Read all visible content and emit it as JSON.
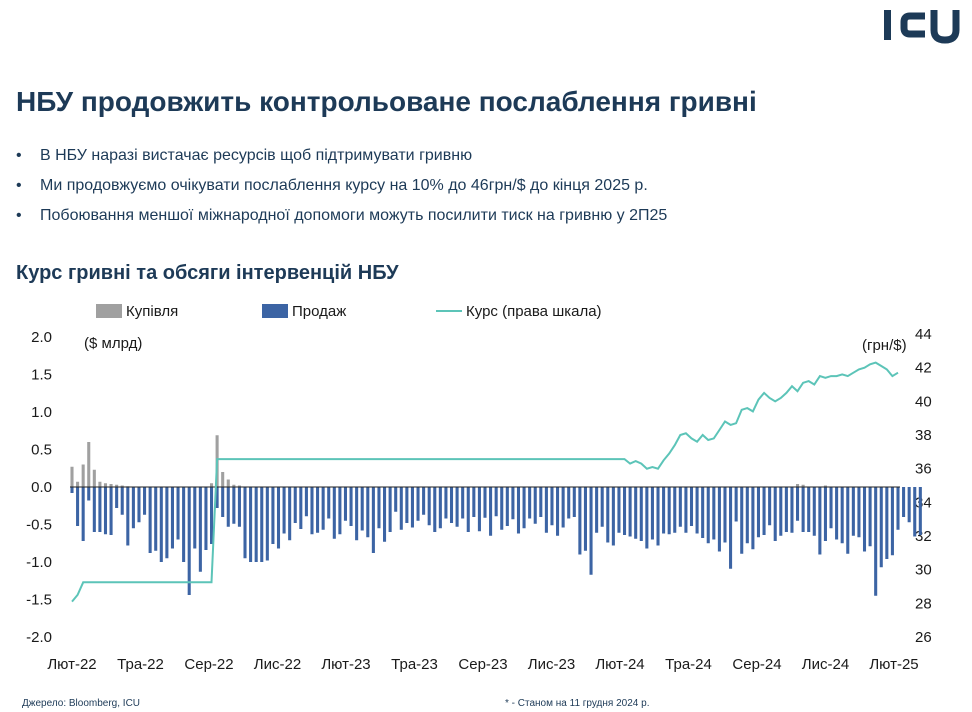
{
  "brand": {
    "logo_text": "ICU"
  },
  "slide": {
    "title": "НБУ продовжить контрольоване послаблення гривні",
    "bullets": [
      "В НБУ наразі вистачає ресурсів щоб підтримувати гривню",
      "Ми продовжуємо очікувати послаблення курсу на 10% до 46грн/$ до кінця 2025 р.",
      "Побоювання меншої міжнародної допомоги можуть посилити тиск на гривню у 2П25"
    ],
    "chart_title": "Курс гривні та обсяги інтервенцій НБУ"
  },
  "footer": {
    "source": "Джерело: Bloomberg, ICU",
    "note": "* - Станом на 11 грудня 2024 р."
  },
  "colors": {
    "buy": "#a0a0a0",
    "sell": "#3c64a4",
    "rate": "#5cc4b8",
    "text": "#1d3a57"
  },
  "chart_data": {
    "type": "bar+line",
    "legend": [
      {
        "label": "Купівля",
        "key": "buy"
      },
      {
        "label": "Продаж",
        "key": "sell"
      },
      {
        "label": "Курс (права шкала)",
        "key": "rate"
      }
    ],
    "left_unit": "($ млрд)",
    "right_unit": "(грн/$)",
    "left_ylim": [
      -2.0,
      2.0
    ],
    "left_ticks": [
      "2.0",
      "1.5",
      "1.0",
      "0.5",
      "0.0",
      "-0.5",
      "-1.0",
      "-1.5",
      "-2.0"
    ],
    "right_ylim": [
      26,
      44
    ],
    "right_ticks": [
      "44",
      "42",
      "40",
      "38",
      "36",
      "34",
      "32",
      "30",
      "28",
      "26"
    ],
    "x_ticks": [
      "Лют-22",
      "Тра-22",
      "Сер-22",
      "Лис-22",
      "Лют-23",
      "Тра-23",
      "Сер-23",
      "Лис-23",
      "Лют-24",
      "Тра-24",
      "Сер-24",
      "Лис-24",
      "Лют-25"
    ],
    "weeks": 149,
    "buy": [
      0.27,
      0.07,
      0.3,
      0.6,
      0.23,
      0.07,
      0.05,
      0.04,
      0.03,
      0.02,
      0.01,
      0,
      0,
      0,
      0,
      0,
      0,
      0,
      0,
      0,
      0,
      0,
      0,
      0,
      0,
      0.05,
      0.69,
      0.2,
      0.1,
      0.03,
      0.02,
      0,
      0,
      0,
      0,
      0,
      0,
      0,
      0,
      0,
      0,
      0,
      0,
      0,
      0,
      0,
      0,
      0,
      0,
      0,
      0,
      0,
      0,
      0,
      0,
      0,
      0,
      0,
      0,
      0,
      0,
      0,
      0,
      0,
      0,
      0,
      0,
      0,
      0,
      0,
      0,
      0,
      0,
      0,
      0,
      0,
      0,
      0,
      0,
      0,
      0,
      0,
      0,
      0,
      0,
      0,
      0,
      0,
      0,
      0,
      0,
      0,
      0,
      0,
      0,
      0,
      0,
      0,
      0,
      0,
      0,
      0,
      0,
      0,
      0,
      0,
      0,
      0,
      0,
      0,
      0,
      0,
      0,
      0,
      0,
      0,
      0,
      0,
      0,
      0,
      0,
      0,
      0,
      0,
      0,
      0,
      0,
      0,
      0,
      0,
      0.04,
      0.03,
      0,
      0,
      0,
      0.02,
      0,
      0,
      0,
      0,
      0,
      0,
      0,
      0,
      0,
      0,
      0,
      0,
      0,
      0,
      0,
      0,
      0
    ],
    "sell": [
      -0.08,
      -0.52,
      -0.72,
      -0.18,
      -0.6,
      -0.6,
      -0.63,
      -0.64,
      -0.28,
      -0.37,
      -0.78,
      -0.55,
      -0.47,
      -0.37,
      -0.88,
      -0.85,
      -1.0,
      -0.95,
      -0.82,
      -0.7,
      -1.0,
      -1.44,
      -0.82,
      -1.13,
      -0.84,
      -0.76,
      -0.28,
      -0.4,
      -0.53,
      -0.49,
      -0.53,
      -0.95,
      -1.0,
      -1.0,
      -1.0,
      -0.98,
      -0.76,
      -0.82,
      -0.62,
      -0.71,
      -0.48,
      -0.56,
      -0.39,
      -0.63,
      -0.61,
      -0.57,
      -0.42,
      -0.69,
      -0.63,
      -0.45,
      -0.52,
      -0.71,
      -0.58,
      -0.67,
      -0.88,
      -0.55,
      -0.73,
      -0.6,
      -0.33,
      -0.57,
      -0.48,
      -0.54,
      -0.45,
      -0.37,
      -0.51,
      -0.6,
      -0.55,
      -0.42,
      -0.48,
      -0.53,
      -0.42,
      -0.6,
      -0.4,
      -0.59,
      -0.41,
      -0.65,
      -0.39,
      -0.57,
      -0.52,
      -0.43,
      -0.62,
      -0.55,
      -0.42,
      -0.49,
      -0.4,
      -0.61,
      -0.51,
      -0.65,
      -0.54,
      -0.42,
      -0.4,
      -0.9,
      -0.85,
      -1.17,
      -0.61,
      -0.53,
      -0.74,
      -0.78,
      -0.61,
      -0.64,
      -0.66,
      -0.69,
      -0.72,
      -0.82,
      -0.7,
      -0.78,
      -0.62,
      -0.63,
      -0.61,
      -0.53,
      -0.61,
      -0.52,
      -0.62,
      -0.68,
      -0.75,
      -0.7,
      -0.86,
      -0.74,
      -1.09,
      -0.46,
      -0.89,
      -0.75,
      -0.83,
      -0.67,
      -0.64,
      -0.51,
      -0.72,
      -0.65,
      -0.6,
      -0.61,
      -0.45,
      -0.6,
      -0.6,
      -0.65,
      -0.9,
      -0.72,
      -0.55,
      -0.7,
      -0.75,
      -0.89,
      -0.65,
      -0.67,
      -0.86,
      -0.79,
      -1.45,
      -1.07,
      -0.96,
      -0.91,
      -0.57,
      -0.4,
      -0.47,
      -0.66,
      -0.64
    ]
  }
}
